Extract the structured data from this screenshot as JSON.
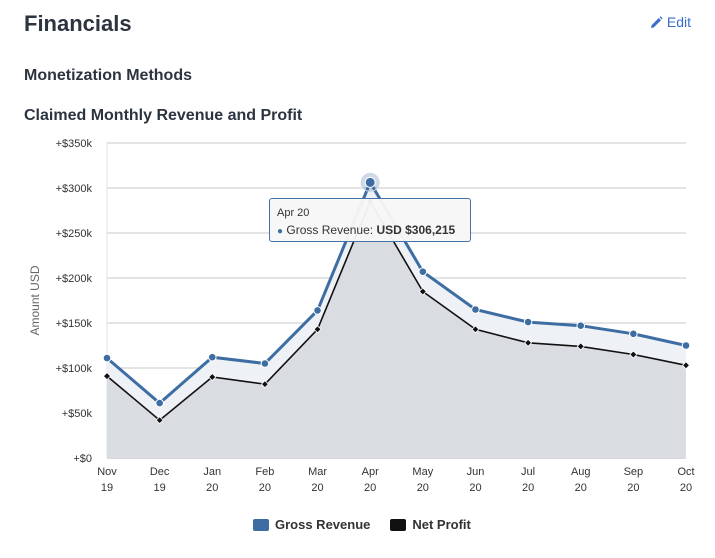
{
  "header": {
    "title": "Financials",
    "edit_label": "Edit"
  },
  "subsection": "Monetization Methods",
  "tooltip": {
    "date": "Apr 20",
    "series": "Gross Revenue:",
    "value": "USD $306,215"
  },
  "colors": {
    "gross": "#3d6da2",
    "net": "#111111",
    "area": "#d9dce0",
    "grid": "#c8c8c8"
  },
  "chart_data": {
    "type": "area",
    "title": "Claimed Monthly Revenue and Profit",
    "ylabel": "Amount USD",
    "xlabel": "",
    "categories": [
      "Nov 19",
      "Dec 19",
      "Jan 20",
      "Feb 20",
      "Mar 20",
      "Apr 20",
      "May 20",
      "Jun 20",
      "Jul 20",
      "Aug 20",
      "Sep 20",
      "Oct 20"
    ],
    "ylim": [
      0,
      350000
    ],
    "yticks": [
      0,
      50000,
      100000,
      150000,
      200000,
      250000,
      300000,
      350000
    ],
    "ytick_labels": [
      "+$0",
      "+$50k",
      "+$100k",
      "+$150k",
      "+$200k",
      "+$250k",
      "+$300k",
      "+$350k"
    ],
    "grid": true,
    "legend_position": "bottom-center",
    "series": [
      {
        "name": "Gross Revenue",
        "values": [
          111000,
          61000,
          112000,
          105000,
          164000,
          306215,
          207000,
          165000,
          151000,
          147000,
          138000,
          125000
        ]
      },
      {
        "name": "Net Profit",
        "values": [
          91000,
          42000,
          90000,
          82000,
          143000,
          285000,
          185000,
          143000,
          128000,
          124000,
          115000,
          103000
        ]
      }
    ]
  }
}
